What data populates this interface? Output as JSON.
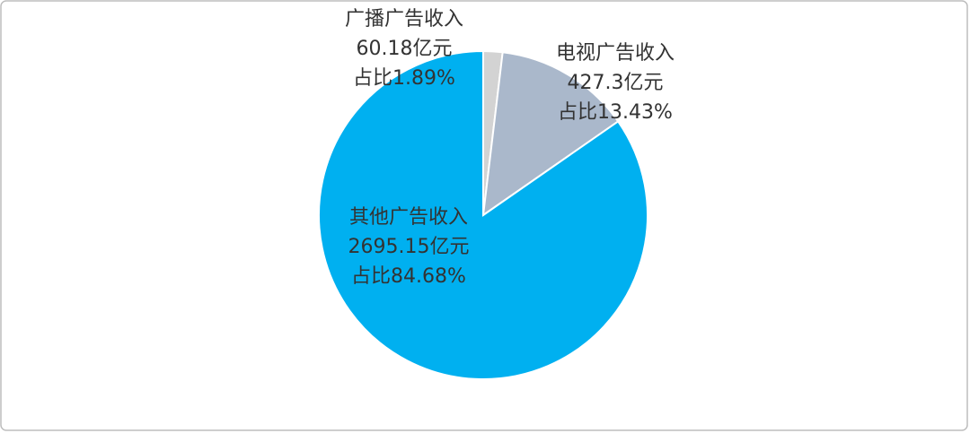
{
  "chart_data": {
    "type": "pie",
    "categories": [
      "广播广告收入",
      "电视广告收入",
      "其他广告收入"
    ],
    "values": [
      1.89,
      13.43,
      84.68
    ],
    "value_labels": [
      "占比1.89%",
      "占比13.43%",
      "占比84.68%"
    ],
    "amounts": [
      60.18,
      427.3,
      2695.15
    ],
    "amount_labels": [
      "60.18亿元",
      "427.3亿元",
      "2695.15亿元"
    ],
    "colors": [
      "#d3d3d3",
      "#aab8cb",
      "#00b0f0"
    ]
  }
}
